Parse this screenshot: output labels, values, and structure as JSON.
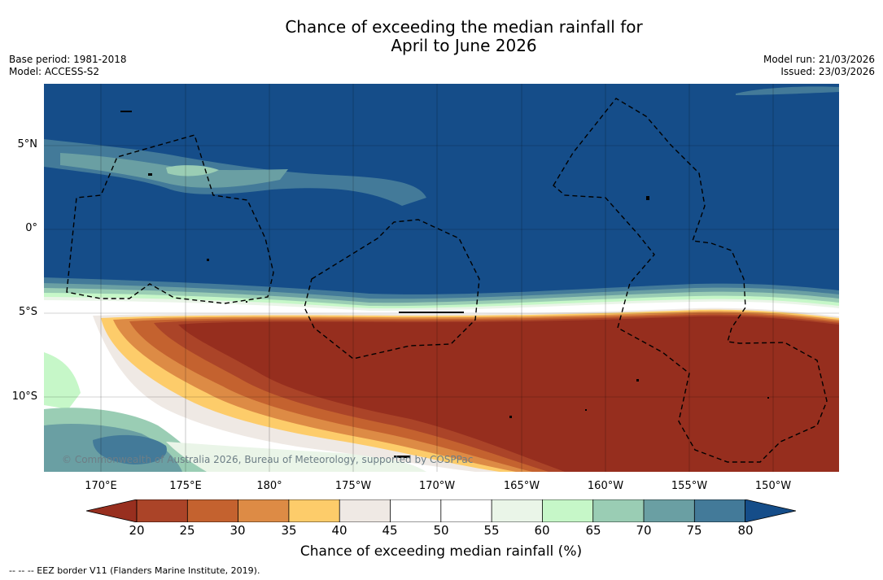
{
  "title": {
    "line1": "Chance of exceeding the median rainfall for",
    "line2": "April to June 2026"
  },
  "meta": {
    "base_period": "Base period: 1981-2018",
    "model": "Model: ACCESS-S2",
    "model_run": "Model run: 21/03/2026",
    "issued": "Issued: 23/03/2026"
  },
  "map": {
    "lat_labels": [
      "5°N",
      "0°",
      "5°S",
      "10°S"
    ],
    "lon_labels": [
      "170°E",
      "175°E",
      "180°",
      "175°W",
      "170°W",
      "165°W",
      "160°W",
      "155°W",
      "150°W"
    ],
    "credit": "© Commonwealth of Australia 2026, Bureau of Meteorology, supported by COSPPac",
    "colors": {
      "wet_high": "#154d89",
      "dry_low": "#962e1e"
    }
  },
  "colorbar": {
    "ticks": [
      "20",
      "25",
      "30",
      "35",
      "40",
      "45",
      "50",
      "55",
      "60",
      "65",
      "70",
      "75",
      "80"
    ],
    "label": "Chance of exceeding median rainfall (%)",
    "colors": [
      "#982f1f",
      "#ab4428",
      "#c4622f",
      "#dd8b45",
      "#fdcc6a",
      "#efe9e4",
      "#ffffff",
      "#ffffff",
      "#eaf5e8",
      "#c6f7c8",
      "#9acdb4",
      "#6a9fa3",
      "#437a99",
      "#154d89"
    ]
  },
  "footer": "--  --  -- EEZ border V11 (Flanders Marine Institute, 2019)."
}
